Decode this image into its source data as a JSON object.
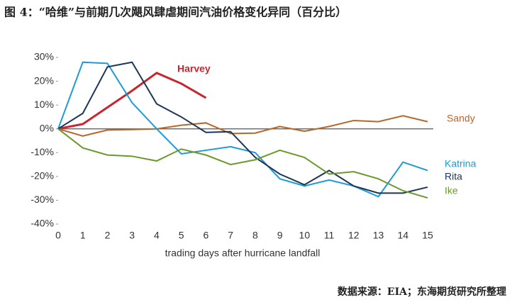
{
  "title": "图 4：“哈维”与前期几次飓风肆虐期间汽油价格变化异同（百分比）",
  "source": "数据来源：EIA；东海期货研究所整理",
  "chart_data": {
    "type": "line",
    "x_label": "trading days after hurricane landfall",
    "x": [
      0,
      1,
      2,
      3,
      4,
      5,
      6,
      7,
      8,
      9,
      10,
      11,
      12,
      13,
      14,
      15
    ],
    "xlim": [
      0,
      15
    ],
    "xticks": [
      0,
      1,
      2,
      3,
      4,
      5,
      6,
      7,
      8,
      9,
      10,
      11,
      12,
      13,
      14,
      15
    ],
    "ylim": [
      -40,
      30
    ],
    "yticks": [
      {
        "value": -40,
        "label": "-40%"
      },
      {
        "value": -30,
        "label": "-30%"
      },
      {
        "value": -20,
        "label": "-20%"
      },
      {
        "value": -10,
        "label": "-10%"
      },
      {
        "value": 0,
        "label": "0%"
      },
      {
        "value": 10,
        "label": "10%"
      },
      {
        "value": 20,
        "label": "20%"
      },
      {
        "value": 30,
        "label": "30%"
      }
    ],
    "grid": false,
    "series": [
      {
        "name": "Harvey",
        "color": "#c8262e",
        "values": [
          0,
          2,
          9,
          16,
          23.5,
          19,
          13,
          null,
          null,
          null,
          null,
          null,
          null,
          null,
          null,
          null
        ]
      },
      {
        "name": "Sandy",
        "color": "#b8662a",
        "values": [
          0,
          -3,
          -0.5,
          -0.3,
          0,
          1.5,
          2.5,
          -2,
          -1.8,
          1,
          -1,
          1,
          3.5,
          3,
          5.5,
          3
        ]
      },
      {
        "name": "Katrina",
        "color": "#1e9ad8",
        "values": [
          0,
          28,
          27.5,
          11,
          0,
          -10.5,
          -9,
          -7.5,
          -10,
          -21,
          -24,
          -21.5,
          -24,
          -28.5,
          -14,
          -17.5
        ]
      },
      {
        "name": "Rita",
        "color": "#1d3557",
        "values": [
          0,
          6.5,
          26,
          28,
          10.5,
          5,
          -1.5,
          -1.2,
          -12,
          -19,
          -23.5,
          -17.5,
          -24,
          -27,
          -27,
          -24.5
        ]
      },
      {
        "name": "Ike",
        "color": "#6b9a2c",
        "values": [
          0,
          -8,
          -11,
          -11.5,
          -13.5,
          -8.5,
          -11,
          -15,
          -13,
          -9,
          -12,
          -19,
          -18,
          -21,
          -26,
          -29
        ]
      }
    ]
  }
}
